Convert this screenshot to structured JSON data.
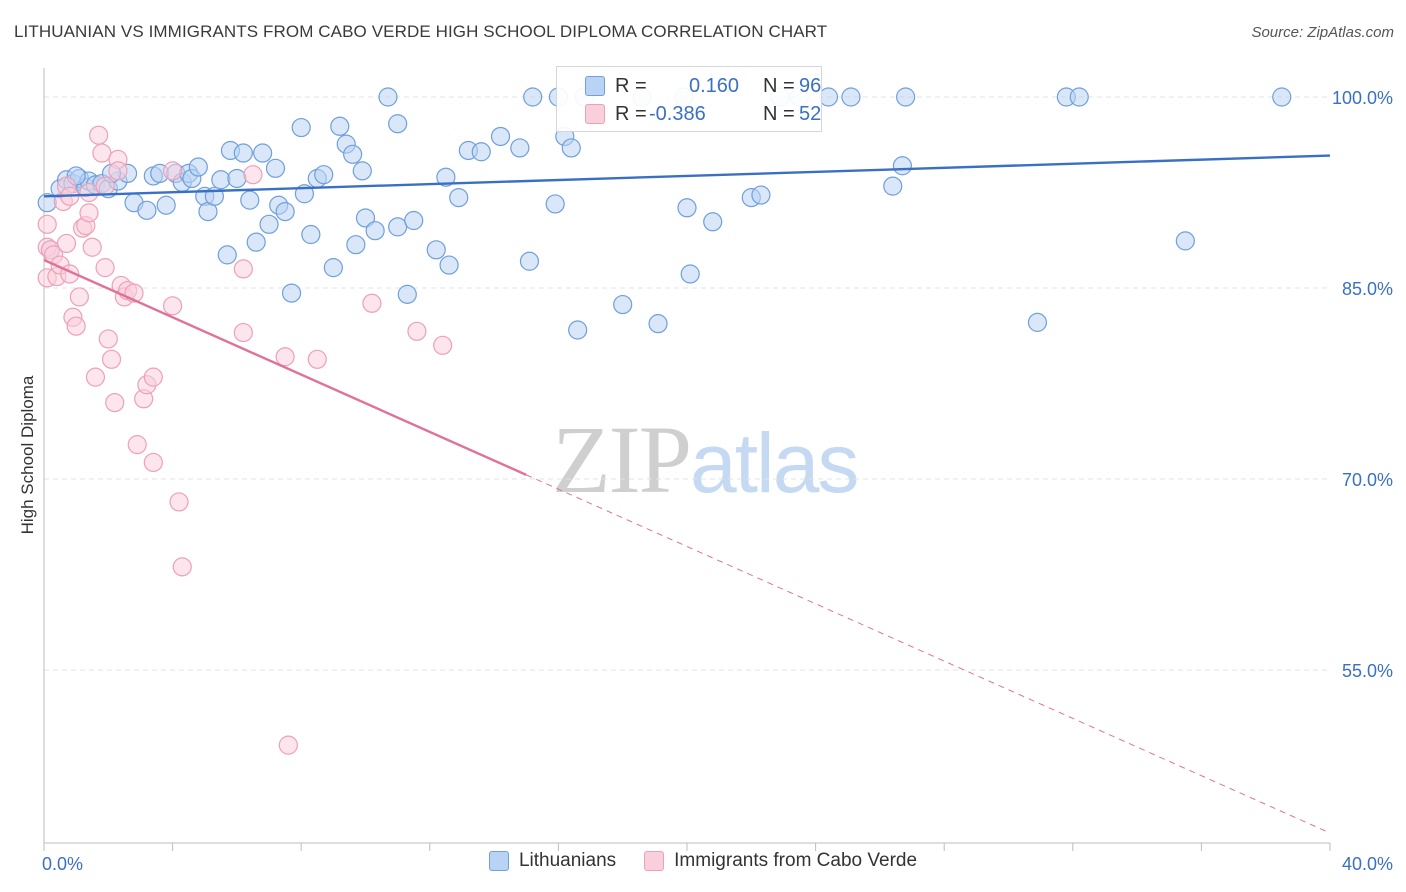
{
  "title": "LITHUANIAN VS IMMIGRANTS FROM CABO VERDE HIGH SCHOOL DIPLOMA CORRELATION CHART",
  "source": "Source: ZipAtlas.com",
  "watermark": {
    "part1": "ZIP",
    "part2": "atlas"
  },
  "colors": {
    "blue": "#3a70c4",
    "blue_fill": "#b9d3f4",
    "blue_stroke": "#6f9fdc",
    "pink": "#e0729a",
    "pink_fill": "#f9cfdc",
    "pink_stroke": "#eea0b8"
  },
  "stats": [
    {
      "r_label": "R =",
      "r_value": "0.160",
      "n_label": "N =",
      "n_value": "96"
    },
    {
      "r_label": "R =",
      "r_value": "-0.386",
      "n_label": "N =",
      "n_value": "52"
    }
  ],
  "legend": [
    {
      "label": "Lithuanians"
    },
    {
      "label": "Immigrants from Cabo Verde"
    }
  ],
  "chart_data": {
    "type": "scatter",
    "ylabel": "High School Diploma",
    "xlim": [
      0,
      40
    ],
    "ylim": [
      40,
      101
    ],
    "x_tick_labels": [
      {
        "value": 0,
        "label": "0.0%"
      },
      {
        "value": 40,
        "label": "40.0%"
      }
    ],
    "y_tick_labels": [
      {
        "value": 100,
        "label": "100.0%"
      },
      {
        "value": 85,
        "label": "85.0%"
      },
      {
        "value": 70,
        "label": "70.0%"
      },
      {
        "value": 55,
        "label": "55.0%"
      }
    ],
    "y_gridlines": [
      100,
      85,
      70,
      55
    ],
    "series": [
      {
        "name": "Lithuanians",
        "trend": {
          "x": [
            0,
            40
          ],
          "y": [
            92.2,
            95.4
          ],
          "dashed_from": null
        },
        "points": [
          [
            0.1,
            91.7
          ],
          [
            0.5,
            92.8
          ],
          [
            0.7,
            93.5
          ],
          [
            0.9,
            93.2
          ],
          [
            1.1,
            93.6
          ],
          [
            1.3,
            92.9
          ],
          [
            1.4,
            93.4
          ],
          [
            1.6,
            93.1
          ],
          [
            1.8,
            93.2
          ],
          [
            2.0,
            92.8
          ],
          [
            2.3,
            93.4
          ],
          [
            2.6,
            94.0
          ],
          [
            2.8,
            91.7
          ],
          [
            3.2,
            91.1
          ],
          [
            3.4,
            93.8
          ],
          [
            3.6,
            94.0
          ],
          [
            3.8,
            91.5
          ],
          [
            4.1,
            94.0
          ],
          [
            4.3,
            93.3
          ],
          [
            4.5,
            94.0
          ],
          [
            4.6,
            93.6
          ],
          [
            4.8,
            94.5
          ],
          [
            5.0,
            92.2
          ],
          [
            5.1,
            91.0
          ],
          [
            5.3,
            92.2
          ],
          [
            5.5,
            93.5
          ],
          [
            5.7,
            87.6
          ],
          [
            5.8,
            95.8
          ],
          [
            6.0,
            93.6
          ],
          [
            6.2,
            95.6
          ],
          [
            6.4,
            91.9
          ],
          [
            6.6,
            88.6
          ],
          [
            6.8,
            95.6
          ],
          [
            7.0,
            90.0
          ],
          [
            7.2,
            94.4
          ],
          [
            7.3,
            91.5
          ],
          [
            7.5,
            91.0
          ],
          [
            7.7,
            84.6
          ],
          [
            8.0,
            97.6
          ],
          [
            8.1,
            92.4
          ],
          [
            8.3,
            89.2
          ],
          [
            8.5,
            93.6
          ],
          [
            8.7,
            93.9
          ],
          [
            9.0,
            86.6
          ],
          [
            9.2,
            97.7
          ],
          [
            9.4,
            96.3
          ],
          [
            9.6,
            95.5
          ],
          [
            9.7,
            88.4
          ],
          [
            9.9,
            94.2
          ],
          [
            10.0,
            90.5
          ],
          [
            10.3,
            89.5
          ],
          [
            10.7,
            100.0
          ],
          [
            11.0,
            89.8
          ],
          [
            11.3,
            84.5
          ],
          [
            11.5,
            90.3
          ],
          [
            11.0,
            97.9
          ],
          [
            12.2,
            88.0
          ],
          [
            12.5,
            93.7
          ],
          [
            12.6,
            86.8
          ],
          [
            12.9,
            92.1
          ],
          [
            13.2,
            95.8
          ],
          [
            13.6,
            95.7
          ],
          [
            14.2,
            96.9
          ],
          [
            14.8,
            96.0
          ],
          [
            15.1,
            87.1
          ],
          [
            15.2,
            100.0
          ],
          [
            15.9,
            91.6
          ],
          [
            16.0,
            100.0
          ],
          [
            16.2,
            96.9
          ],
          [
            16.4,
            96.0
          ],
          [
            16.8,
            100.0
          ],
          [
            16.6,
            81.7
          ],
          [
            18.0,
            83.7
          ],
          [
            18.6,
            100.0
          ],
          [
            19.1,
            82.2
          ],
          [
            19.9,
            100.0
          ],
          [
            20.0,
            91.3
          ],
          [
            20.1,
            86.1
          ],
          [
            20.8,
            90.2
          ],
          [
            22.0,
            92.1
          ],
          [
            22.3,
            92.3
          ],
          [
            22.9,
            100.0
          ],
          [
            23.5,
            100.0
          ],
          [
            24.4,
            100.0
          ],
          [
            25.1,
            100.0
          ],
          [
            26.4,
            93.0
          ],
          [
            26.7,
            94.6
          ],
          [
            26.8,
            100.0
          ],
          [
            30.9,
            82.3
          ],
          [
            31.8,
            100.0
          ],
          [
            32.2,
            100.0
          ],
          [
            35.5,
            88.7
          ],
          [
            38.5,
            100.0
          ],
          [
            0.2,
            88.0
          ],
          [
            1.0,
            93.8
          ],
          [
            2.1,
            94.0
          ]
        ]
      },
      {
        "name": "Immigrants from Cabo Verde",
        "trend": {
          "x": [
            0,
            40
          ],
          "y": [
            87.2,
            42.2
          ],
          "dashed_from": 15.0
        },
        "points": [
          [
            0.1,
            88.2
          ],
          [
            0.1,
            90.0
          ],
          [
            0.1,
            85.8
          ],
          [
            0.2,
            88.0
          ],
          [
            0.3,
            87.6
          ],
          [
            0.4,
            85.9
          ],
          [
            0.5,
            86.8
          ],
          [
            0.6,
            91.8
          ],
          [
            0.7,
            93.0
          ],
          [
            0.7,
            88.5
          ],
          [
            0.8,
            86.1
          ],
          [
            0.8,
            92.2
          ],
          [
            0.9,
            82.7
          ],
          [
            1.0,
            82.0
          ],
          [
            1.1,
            84.3
          ],
          [
            1.2,
            89.7
          ],
          [
            1.3,
            89.9
          ],
          [
            1.4,
            90.9
          ],
          [
            1.4,
            92.5
          ],
          [
            1.5,
            88.2
          ],
          [
            1.6,
            78.0
          ],
          [
            1.7,
            97.0
          ],
          [
            1.8,
            95.6
          ],
          [
            1.9,
            86.6
          ],
          [
            1.9,
            93.0
          ],
          [
            2.0,
            81.0
          ],
          [
            2.1,
            79.4
          ],
          [
            2.2,
            76.0
          ],
          [
            2.3,
            95.1
          ],
          [
            2.3,
            94.2
          ],
          [
            2.4,
            85.2
          ],
          [
            2.5,
            84.3
          ],
          [
            2.6,
            84.8
          ],
          [
            2.8,
            84.6
          ],
          [
            2.9,
            72.7
          ],
          [
            3.1,
            76.3
          ],
          [
            3.2,
            77.4
          ],
          [
            3.4,
            71.3
          ],
          [
            3.4,
            78.0
          ],
          [
            4.0,
            83.6
          ],
          [
            4.2,
            68.2
          ],
          [
            4.0,
            94.2
          ],
          [
            4.3,
            63.1
          ],
          [
            6.2,
            86.5
          ],
          [
            6.2,
            81.5
          ],
          [
            6.5,
            93.9
          ],
          [
            7.5,
            79.6
          ],
          [
            8.5,
            79.4
          ],
          [
            10.2,
            83.8
          ],
          [
            11.6,
            81.6
          ],
          [
            12.4,
            80.5
          ],
          [
            7.6,
            49.1
          ]
        ]
      }
    ]
  }
}
